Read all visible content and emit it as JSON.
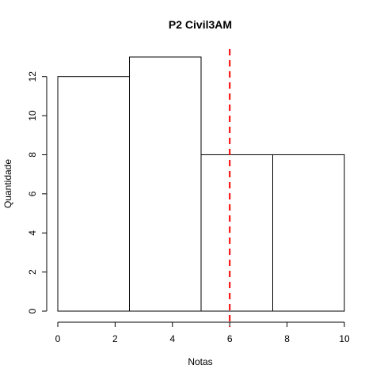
{
  "chart_data": {
    "type": "bar",
    "title": "P2 Civil3AM",
    "xlabel": "Notas",
    "ylabel": "Quantidade",
    "bins": [
      [
        0,
        2.5
      ],
      [
        2.5,
        5
      ],
      [
        5,
        7.5
      ],
      [
        7.5,
        10
      ]
    ],
    "values": [
      12,
      13,
      8,
      8
    ],
    "xlim": [
      0,
      10
    ],
    "ylim": [
      0,
      13
    ],
    "xticks": [
      0,
      2,
      4,
      6,
      8,
      10
    ],
    "yticks": [
      0,
      2,
      4,
      6,
      8,
      10,
      12
    ],
    "reference_line": {
      "x": 6,
      "color": "#ff0000",
      "style": "dashed"
    },
    "grid": false
  }
}
